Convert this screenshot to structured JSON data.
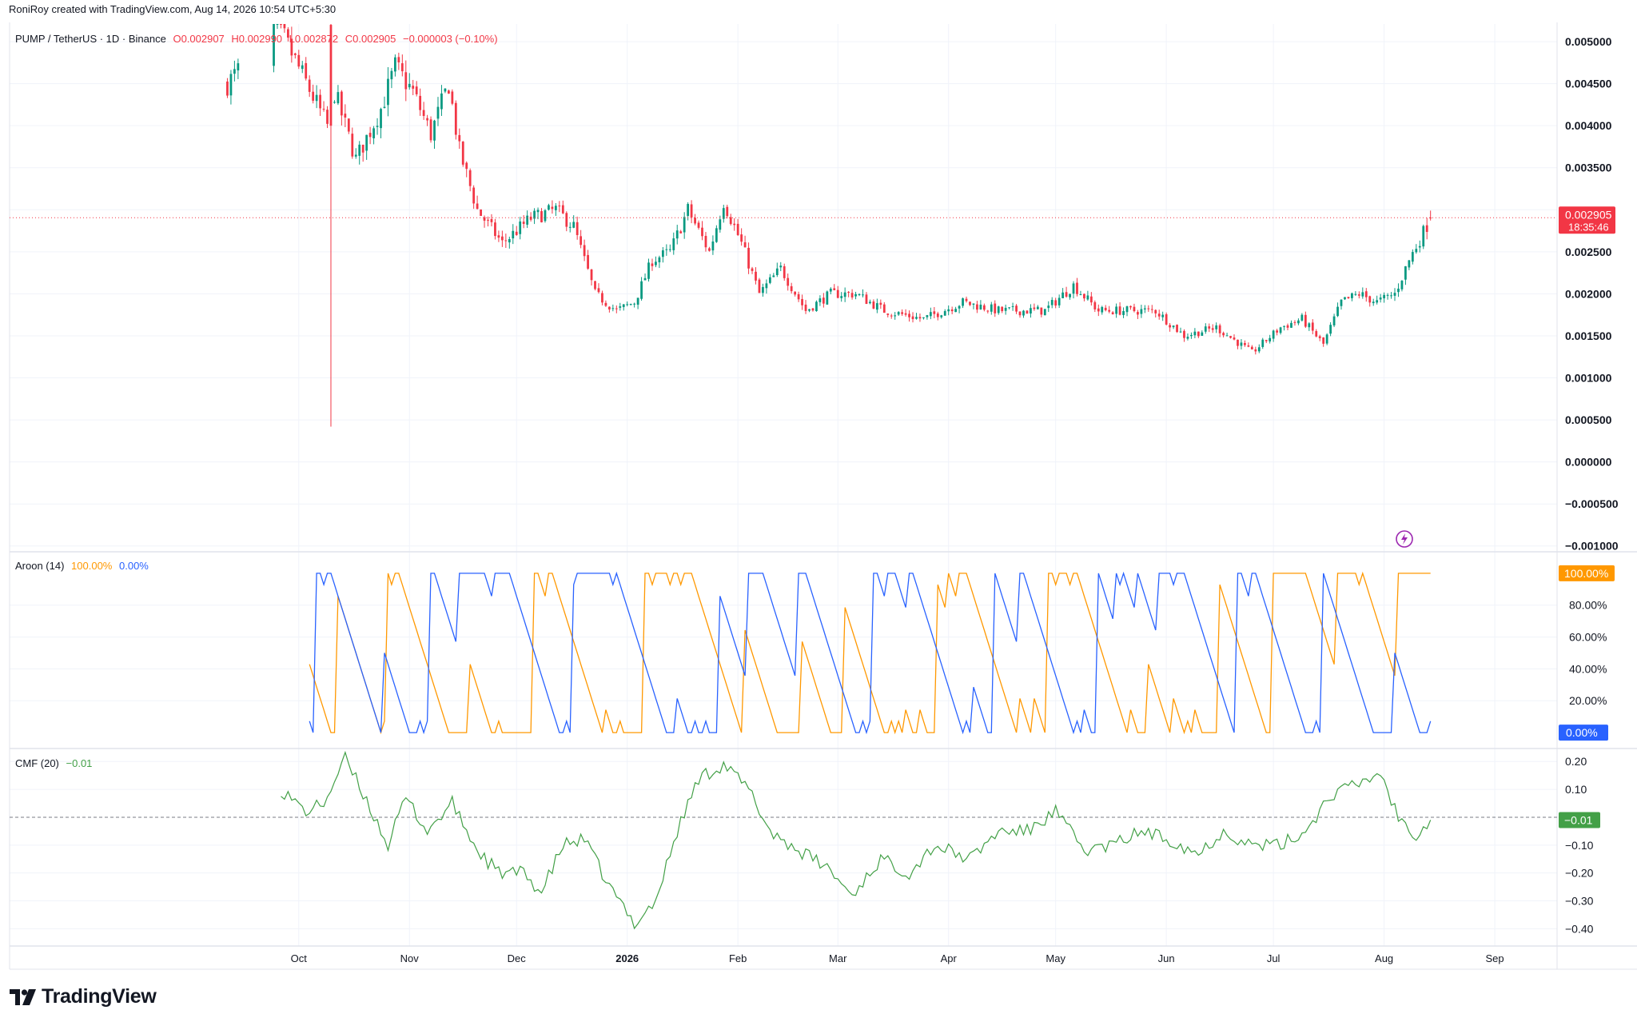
{
  "header": {
    "credit": "RoniRoy created with TradingView.com, Aug 14, 2026 10:54 UTC+5:30"
  },
  "legend": {
    "symbol": "PUMP / TetherUS · 1D · Binance",
    "open": "O0.002907",
    "high": "H0.002990",
    "low": "L0.002872",
    "close": "C0.002905",
    "change": "−0.000003 (−0.10%)"
  },
  "aroon_legend": {
    "name": "Aroon (14)",
    "up": "100.00%",
    "down": "0.00%"
  },
  "cmf_legend": {
    "name": "CMF (20)",
    "value": "−0.01"
  },
  "brand": {
    "name": "TradingView"
  },
  "colors": {
    "up": "#089981",
    "down": "#f23645",
    "aroon_up": "#ff9800",
    "aroon_down": "#2962ff",
    "cmf": "#43a047",
    "grid": "#f0f3fa"
  },
  "chart_data": [
    {
      "type": "candlestick",
      "title": "PUMP / TetherUS · 1D · Binance",
      "x_tick_labels": [
        "Oct",
        "Nov",
        "Dec",
        "2026",
        "Feb",
        "Mar",
        "Apr",
        "May",
        "Jun",
        "Jul",
        "Aug",
        "Sep"
      ],
      "y_tick_labels": [
        "0.005000",
        "0.004500",
        "0.004000",
        "0.003500",
        "0.002500",
        "0.002000",
        "0.001500",
        "0.001000",
        "0.000500",
        "0.000000",
        "−0.000500",
        "−0.001000"
      ],
      "ylim": [
        -0.00105,
        0.00521
      ],
      "last_price_label": "0.002905",
      "countdown_label": "18:35:46",
      "x_range": [
        "2025-07-12",
        "2026-09-18"
      ],
      "series_close_anchors": [
        {
          "date": "2025-09-11",
          "close": 0.0045
        },
        {
          "date": "2025-09-25",
          "close": 0.0052
        },
        {
          "date": "2025-10-09",
          "close": 0.004
        },
        {
          "date": "2025-10-11",
          "close": 0.0044
        },
        {
          "date": "2025-10-17",
          "close": 0.0036
        },
        {
          "date": "2025-10-24",
          "close": 0.0042
        },
        {
          "date": "2025-10-28",
          "close": 0.0047
        },
        {
          "date": "2025-11-02",
          "close": 0.0044
        },
        {
          "date": "2025-11-07",
          "close": 0.0039
        },
        {
          "date": "2025-11-12",
          "close": 0.0045
        },
        {
          "date": "2025-11-15",
          "close": 0.0037
        },
        {
          "date": "2025-11-20",
          "close": 0.003
        },
        {
          "date": "2025-11-27",
          "close": 0.0026
        },
        {
          "date": "2025-12-05",
          "close": 0.0029
        },
        {
          "date": "2025-12-12",
          "close": 0.003
        },
        {
          "date": "2025-12-17",
          "close": 0.0028
        },
        {
          "date": "2025-12-23",
          "close": 0.002
        },
        {
          "date": "2025-12-29",
          "close": 0.0018
        },
        {
          "date": "2026-01-03",
          "close": 0.0019
        },
        {
          "date": "2026-01-08",
          "close": 0.0024
        },
        {
          "date": "2026-01-13",
          "close": 0.0025
        },
        {
          "date": "2026-01-18",
          "close": 0.003
        },
        {
          "date": "2026-01-24",
          "close": 0.0025
        },
        {
          "date": "2026-01-28",
          "close": 0.0031
        },
        {
          "date": "2026-02-02",
          "close": 0.0026
        },
        {
          "date": "2026-02-07",
          "close": 0.002
        },
        {
          "date": "2026-02-13",
          "close": 0.0023
        },
        {
          "date": "2026-02-20",
          "close": 0.0018
        },
        {
          "date": "2026-02-27",
          "close": 0.002
        },
        {
          "date": "2026-03-06",
          "close": 0.002
        },
        {
          "date": "2026-03-14",
          "close": 0.0018
        },
        {
          "date": "2026-03-25",
          "close": 0.0017
        },
        {
          "date": "2026-04-05",
          "close": 0.0019
        },
        {
          "date": "2026-04-15",
          "close": 0.0018
        },
        {
          "date": "2026-04-28",
          "close": 0.0018
        },
        {
          "date": "2026-05-06",
          "close": 0.0021
        },
        {
          "date": "2026-05-13",
          "close": 0.0018
        },
        {
          "date": "2026-05-20",
          "close": 0.0018
        },
        {
          "date": "2026-05-29",
          "close": 0.0018
        },
        {
          "date": "2026-06-06",
          "close": 0.0015
        },
        {
          "date": "2026-06-15",
          "close": 0.0016
        },
        {
          "date": "2026-06-25",
          "close": 0.0013
        },
        {
          "date": "2026-07-03",
          "close": 0.0016
        },
        {
          "date": "2026-07-09",
          "close": 0.0017
        },
        {
          "date": "2026-07-15",
          "close": 0.0014
        },
        {
          "date": "2026-07-20",
          "close": 0.0019
        },
        {
          "date": "2026-07-25",
          "close": 0.002
        },
        {
          "date": "2026-07-30",
          "close": 0.0019
        },
        {
          "date": "2026-08-04",
          "close": 0.002
        },
        {
          "date": "2026-08-08",
          "close": 0.0024
        },
        {
          "date": "2026-08-14",
          "close": 0.0029
        }
      ],
      "spike_low": {
        "date": "2025-10-10",
        "low": 0.00042
      }
    },
    {
      "type": "line",
      "title": "Aroon (14)",
      "y_tick_labels": [
        "80.00%",
        "60.00%",
        "40.00%",
        "20.00%"
      ],
      "ylim": [
        -9,
        112
      ],
      "series": [
        {
          "name": "Aroon Up",
          "color": "#ff9800",
          "last_value_label": "100.00%"
        },
        {
          "name": "Aroon Down",
          "color": "#2962ff",
          "last_value_label": "0.00%"
        }
      ]
    },
    {
      "type": "line",
      "title": "CMF (20)",
      "y_tick_labels": [
        "0.20",
        "0.10",
        "−0.10",
        "−0.20",
        "−0.30",
        "−0.40"
      ],
      "ylim": [
        -0.462,
        0.238
      ],
      "series": [
        {
          "name": "CMF",
          "color": "#43a047",
          "last_value_label": "−0.01",
          "anchors": [
            {
              "date": "2025-09-26",
              "value": 0.1
            },
            {
              "date": "2025-10-03",
              "value": 0.02
            },
            {
              "date": "2025-10-08",
              "value": 0.05
            },
            {
              "date": "2025-10-14",
              "value": 0.21
            },
            {
              "date": "2025-10-20",
              "value": 0.06
            },
            {
              "date": "2025-10-26",
              "value": -0.1
            },
            {
              "date": "2025-10-31",
              "value": 0.07
            },
            {
              "date": "2025-11-06",
              "value": -0.05
            },
            {
              "date": "2025-11-13",
              "value": 0.05
            },
            {
              "date": "2025-11-20",
              "value": -0.12
            },
            {
              "date": "2025-11-26",
              "value": -0.2
            },
            {
              "date": "2025-12-03",
              "value": -0.2
            },
            {
              "date": "2025-12-08",
              "value": -0.27
            },
            {
              "date": "2025-12-14",
              "value": -0.1
            },
            {
              "date": "2025-12-20",
              "value": -0.08
            },
            {
              "date": "2025-12-27",
              "value": -0.25
            },
            {
              "date": "2026-01-03",
              "value": -0.38
            },
            {
              "date": "2026-01-09",
              "value": -0.3
            },
            {
              "date": "2026-01-15",
              "value": -0.05
            },
            {
              "date": "2026-01-21",
              "value": 0.14
            },
            {
              "date": "2026-01-28",
              "value": 0.19
            },
            {
              "date": "2026-02-04",
              "value": 0.1
            },
            {
              "date": "2026-02-10",
              "value": -0.05
            },
            {
              "date": "2026-02-18",
              "value": -0.12
            },
            {
              "date": "2026-02-26",
              "value": -0.18
            },
            {
              "date": "2026-03-05",
              "value": -0.28
            },
            {
              "date": "2026-03-13",
              "value": -0.15
            },
            {
              "date": "2026-03-21",
              "value": -0.2
            },
            {
              "date": "2026-03-28",
              "value": -0.1
            },
            {
              "date": "2026-04-07",
              "value": -0.15
            },
            {
              "date": "2026-04-15",
              "value": -0.05
            },
            {
              "date": "2026-04-23",
              "value": -0.05
            },
            {
              "date": "2026-05-01",
              "value": 0.02
            },
            {
              "date": "2026-05-09",
              "value": -0.12
            },
            {
              "date": "2026-05-17",
              "value": -0.1
            },
            {
              "date": "2026-05-25",
              "value": -0.05
            },
            {
              "date": "2026-06-02",
              "value": -0.08
            },
            {
              "date": "2026-06-10",
              "value": -0.13
            },
            {
              "date": "2026-06-17",
              "value": -0.05
            },
            {
              "date": "2026-06-25",
              "value": -0.1
            },
            {
              "date": "2026-07-03",
              "value": -0.1
            },
            {
              "date": "2026-07-10",
              "value": -0.05
            },
            {
              "date": "2026-07-17",
              "value": 0.08
            },
            {
              "date": "2026-07-25",
              "value": 0.12
            },
            {
              "date": "2026-07-31",
              "value": 0.16
            },
            {
              "date": "2026-08-05",
              "value": 0.0
            },
            {
              "date": "2026-08-10",
              "value": -0.06
            },
            {
              "date": "2026-08-14",
              "value": -0.01
            }
          ]
        }
      ]
    }
  ]
}
